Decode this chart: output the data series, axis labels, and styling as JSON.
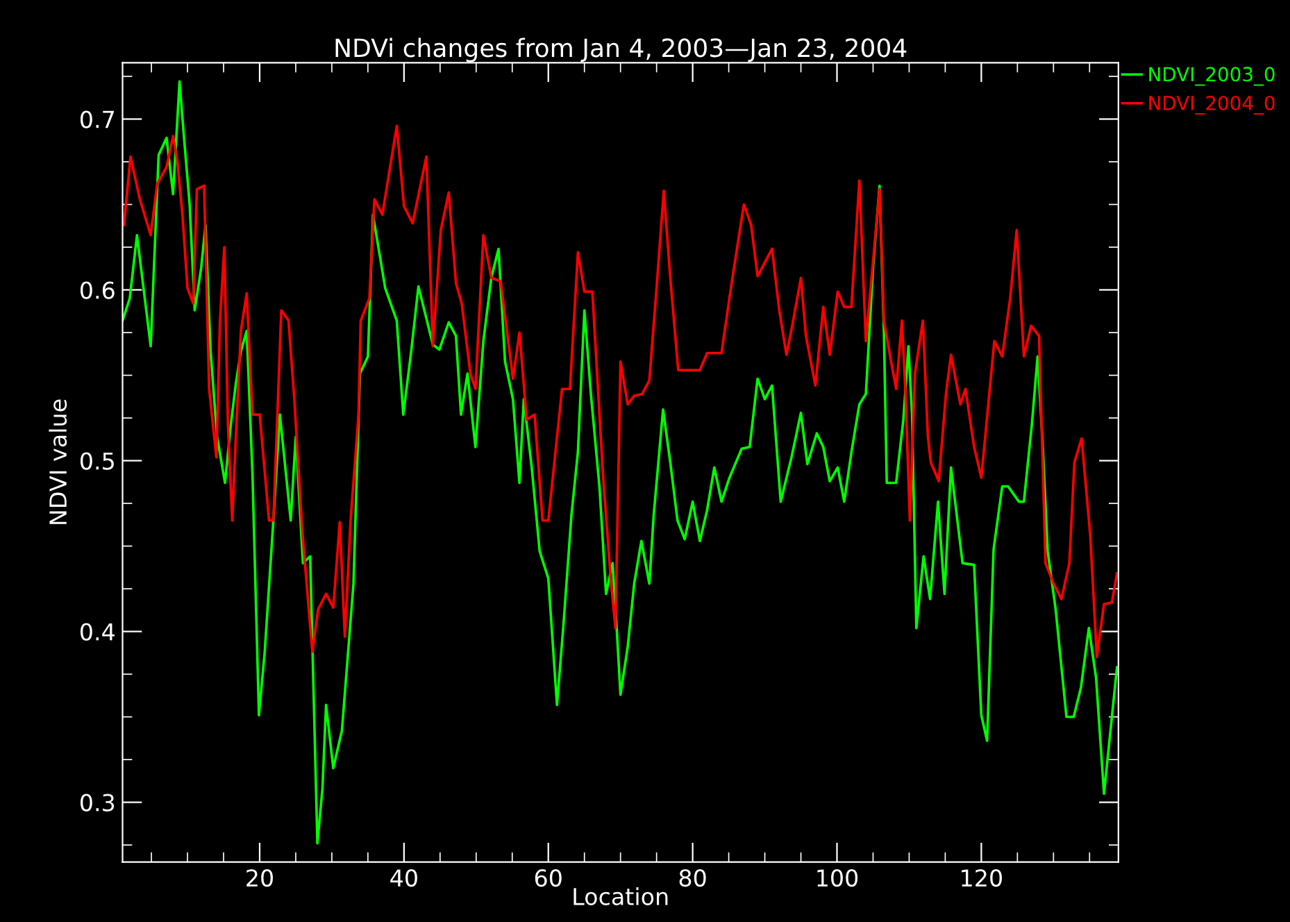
{
  "chart_data": {
    "type": "line",
    "title": "NDVi changes from Jan 4, 2003—Jan 23, 2004",
    "xlabel": "Location",
    "ylabel": "NDVI value",
    "xlim": [
      1,
      139
    ],
    "xticks": [
      20,
      40,
      60,
      80,
      100,
      120
    ],
    "ylim": [
      0.265,
      0.733
    ],
    "yticks": [
      0.3,
      0.4,
      0.5,
      0.6,
      0.7
    ],
    "grid": false,
    "legend": "top right",
    "marker": "none",
    "line_style": "solid",
    "series": [
      {
        "name": "NDVI_2003_0",
        "color": "#00ff00",
        "x": [
          1,
          2,
          3,
          4.9,
          6,
          7.1,
          8,
          8.9,
          9.5,
          10.3,
          11,
          11.9,
          12.5,
          13.2,
          14.1,
          15.2,
          16,
          16.7,
          17.4,
          18.2,
          19,
          19.9,
          20.7,
          21.9,
          22.8,
          23.7,
          24.3,
          25,
          26,
          27,
          28,
          28.7,
          29.2,
          30.2,
          31.4,
          33,
          33.9,
          35,
          35.7,
          37.4,
          39,
          39.9,
          41,
          42,
          44,
          44.9,
          46.2,
          47.2,
          47.9,
          48.8,
          49.9,
          51,
          52.1,
          53.1,
          54,
          55.1,
          56,
          56.6,
          57.7,
          58.8,
          60,
          61.2,
          62.1,
          63.2,
          64.1,
          65,
          65.9,
          67.1,
          68,
          68.9,
          69.5,
          70,
          71,
          71.9,
          72.9,
          74,
          74.6,
          75.9,
          76.9,
          77.9,
          78.9,
          80,
          81,
          82,
          83,
          84,
          85.1,
          86.8,
          87.9,
          89,
          90,
          91,
          92.2,
          93.7,
          95,
          95.9,
          97.2,
          98.1,
          99,
          100.1,
          101,
          102,
          103.1,
          104,
          105,
          105.9,
          106.5,
          106.9,
          108.2,
          109.2,
          109.9,
          110.4,
          111,
          112,
          112.9,
          114,
          114.9,
          115.8,
          117.4,
          119,
          120,
          120.8,
          121.7,
          122.9,
          123.7,
          125.2,
          125.9,
          127,
          127.8,
          128.5,
          129.2,
          130.3,
          131.8,
          132.8,
          133.8,
          134.9,
          135.9,
          137,
          137.9,
          138.8
        ],
        "values": [
          0.582,
          0.595,
          0.632,
          0.567,
          0.679,
          0.689,
          0.656,
          0.722,
          0.69,
          0.65,
          0.588,
          0.613,
          0.638,
          0.564,
          0.514,
          0.487,
          0.521,
          0.545,
          0.564,
          0.576,
          0.493,
          0.351,
          0.388,
          0.465,
          0.527,
          0.49,
          0.465,
          0.514,
          0.44,
          0.444,
          0.276,
          0.308,
          0.357,
          0.32,
          0.342,
          0.428,
          0.551,
          0.561,
          0.644,
          0.601,
          0.582,
          0.527,
          0.564,
          0.602,
          0.568,
          0.565,
          0.581,
          0.573,
          0.527,
          0.551,
          0.508,
          0.57,
          0.607,
          0.624,
          0.558,
          0.536,
          0.487,
          0.536,
          0.496,
          0.447,
          0.431,
          0.357,
          0.404,
          0.468,
          0.505,
          0.588,
          0.539,
          0.484,
          0.422,
          0.44,
          0.4,
          0.363,
          0.391,
          0.428,
          0.453,
          0.428,
          0.468,
          0.53,
          0.499,
          0.465,
          0.454,
          0.476,
          0.453,
          0.471,
          0.496,
          0.476,
          0.49,
          0.507,
          0.508,
          0.548,
          0.536,
          0.544,
          0.476,
          0.502,
          0.528,
          0.498,
          0.516,
          0.508,
          0.488,
          0.496,
          0.476,
          0.505,
          0.533,
          0.539,
          0.613,
          0.661,
          0.576,
          0.487,
          0.487,
          0.524,
          0.567,
          0.527,
          0.402,
          0.444,
          0.419,
          0.476,
          0.422,
          0.496,
          0.44,
          0.439,
          0.351,
          0.336,
          0.448,
          0.485,
          0.485,
          0.476,
          0.476,
          0.521,
          0.561,
          0.51,
          0.447,
          0.413,
          0.35,
          0.35,
          0.367,
          0.402,
          0.373,
          0.305,
          0.342,
          0.379
        ]
      },
      {
        "name": "NDVI_2004_0",
        "color": "#ff0000",
        "x": [
          1.2,
          2.1,
          3.4,
          4.9,
          5.8,
          7.1,
          8,
          8.6,
          9.3,
          10,
          10.8,
          11.3,
          12.3,
          13,
          14,
          14.5,
          15.1,
          15.6,
          16.2,
          16.7,
          17.4,
          18.2,
          19,
          20,
          21.3,
          21.9,
          23,
          24,
          24.8,
          25.9,
          27.3,
          28.1,
          29.2,
          30.2,
          31.1,
          31.8,
          32.6,
          33.7,
          34,
          35.2,
          35.9,
          37,
          39,
          40,
          41.2,
          43.1,
          44,
          45.1,
          46.2,
          47.2,
          48,
          49.2,
          49.9,
          51,
          52.1,
          53.4,
          55.1,
          56,
          57,
          58.1,
          59.2,
          60,
          61.9,
          63,
          64.1,
          65,
          66.1,
          67.6,
          68.7,
          69.3,
          70,
          71,
          71.9,
          73,
          74,
          75,
          76,
          76.9,
          78,
          81,
          82,
          84,
          85.4,
          87.1,
          88.1,
          89,
          91,
          92,
          93,
          93.8,
          95,
          95.7,
          97,
          98.1,
          99,
          100.1,
          101,
          102,
          103.1,
          104,
          105.9,
          106.5,
          107.5,
          108.2,
          109,
          109.5,
          110.1,
          110.8,
          111.9,
          112.6,
          113,
          114.1,
          115.1,
          115.8,
          117.1,
          117.8,
          119,
          120,
          121.8,
          122.9,
          124,
          124.9,
          125.9,
          126.9,
          128,
          128.9,
          130,
          131.1,
          132.2,
          132.9,
          133.9,
          135.1,
          136,
          137,
          138.1,
          138.8
        ],
        "values": [
          0.638,
          0.678,
          0.653,
          0.632,
          0.662,
          0.672,
          0.69,
          0.675,
          0.644,
          0.601,
          0.592,
          0.659,
          0.661,
          0.542,
          0.502,
          0.582,
          0.625,
          0.521,
          0.465,
          0.514,
          0.576,
          0.598,
          0.527,
          0.527,
          0.465,
          0.465,
          0.588,
          0.582,
          0.536,
          0.459,
          0.388,
          0.413,
          0.422,
          0.414,
          0.464,
          0.397,
          0.465,
          0.527,
          0.582,
          0.595,
          0.653,
          0.644,
          0.696,
          0.649,
          0.639,
          0.678,
          0.567,
          0.635,
          0.657,
          0.604,
          0.592,
          0.551,
          0.542,
          0.632,
          0.607,
          0.605,
          0.548,
          0.575,
          0.524,
          0.527,
          0.465,
          0.465,
          0.542,
          0.542,
          0.622,
          0.599,
          0.599,
          0.49,
          0.428,
          0.402,
          0.558,
          0.533,
          0.538,
          0.539,
          0.547,
          0.601,
          0.658,
          0.607,
          0.553,
          0.553,
          0.563,
          0.563,
          0.604,
          0.65,
          0.638,
          0.608,
          0.624,
          0.588,
          0.562,
          0.579,
          0.607,
          0.573,
          0.544,
          0.59,
          0.562,
          0.599,
          0.59,
          0.59,
          0.664,
          0.57,
          0.659,
          0.582,
          0.558,
          0.542,
          0.582,
          0.539,
          0.465,
          0.551,
          0.582,
          0.514,
          0.499,
          0.488,
          0.539,
          0.562,
          0.533,
          0.542,
          0.508,
          0.49,
          0.57,
          0.561,
          0.595,
          0.635,
          0.561,
          0.579,
          0.573,
          0.44,
          0.428,
          0.419,
          0.44,
          0.499,
          0.513,
          0.456,
          0.385,
          0.416,
          0.417,
          0.434
        ]
      }
    ]
  }
}
